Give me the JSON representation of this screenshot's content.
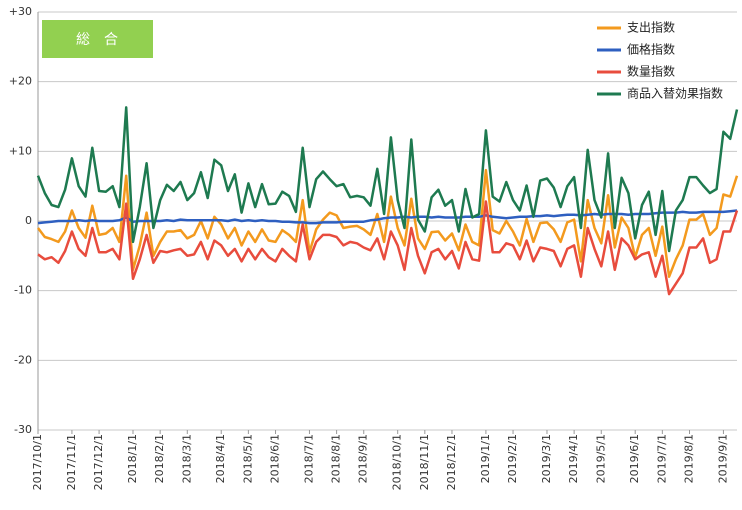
{
  "chart_data": {
    "type": "line",
    "annotation": "総　合",
    "categories": [
      "2017/10/1",
      null,
      null,
      null,
      null,
      "2017/11/1",
      null,
      null,
      null,
      "2017/12/1",
      null,
      null,
      null,
      null,
      "2018/1/1",
      null,
      null,
      null,
      "2018/2/1",
      null,
      null,
      null,
      "2018/3/1",
      null,
      null,
      null,
      null,
      "2018/4/1",
      null,
      null,
      null,
      "2018/5/1",
      null,
      null,
      null,
      "2018/6/1",
      null,
      null,
      null,
      null,
      "2018/7/1",
      null,
      null,
      null,
      "2018/8/1",
      null,
      null,
      null,
      "2018/9/1",
      null,
      null,
      null,
      null,
      "2018/10/1",
      null,
      null,
      null,
      "2018/11/1",
      null,
      null,
      null,
      "2018/12/1",
      null,
      null,
      null,
      null,
      "2019/1/1",
      null,
      null,
      null,
      "2019/2/1",
      null,
      null,
      null,
      null,
      "2019/3/1",
      null,
      null,
      null,
      "2019/4/1",
      null,
      null,
      null,
      "2019/5/1",
      null,
      null,
      null,
      null,
      "2019/6/1",
      null,
      null,
      null,
      "2019/7/1",
      null,
      null,
      null,
      "2019/8/1",
      null,
      null,
      null,
      null,
      "2019/9/1",
      null,
      null
    ],
    "series": [
      {
        "name": "支出指数",
        "color": "#f39a1e",
        "values": [
          -1,
          -2.3,
          -2.6,
          -3,
          -1.5,
          1.5,
          -1,
          -2.4,
          2.2,
          -2,
          -1.8,
          -1,
          -3,
          6.5,
          -7,
          -3.5,
          1.2,
          -5,
          -3,
          -1.5,
          -1.5,
          -1.3,
          -2.5,
          -2,
          0,
          -2.5,
          0.6,
          -0.5,
          -2.5,
          -1,
          -3.5,
          -1.5,
          -3,
          -1.2,
          -2.8,
          -3,
          -1.3,
          -2,
          -3,
          3,
          -4.5,
          -1.2,
          0.2,
          1.2,
          0.8,
          -1,
          -0.8,
          -0.7,
          -1.2,
          -2,
          1,
          -3,
          3.5,
          -1,
          -3.5,
          3.2,
          -2.5,
          -4,
          -1.6,
          -1.5,
          -2.8,
          -1.8,
          -4.2,
          -0.5,
          -3,
          -3.5,
          7.3,
          -1.3,
          -1.8,
          0,
          -1.5,
          -3.5,
          0.3,
          -3,
          -0.3,
          -0.2,
          -1.2,
          -3,
          -0.2,
          0.2,
          -5.8,
          3,
          -1,
          -3.2,
          3.7,
          -3.8,
          0.5,
          -1,
          -5.2,
          -2,
          -1,
          -5,
          -0.8,
          -8,
          -5.5,
          -3.5,
          0.2,
          0.2,
          1,
          -2,
          -1,
          3.8,
          3.5,
          6.5
        ]
      },
      {
        "name": "価格指数",
        "color": "#2e5fc0",
        "values": [
          -0.3,
          -0.2,
          -0.1,
          0,
          0,
          0,
          0.1,
          0,
          0.1,
          0,
          0,
          0,
          0.1,
          0.5,
          -0.1,
          0,
          0,
          0,
          0,
          0.1,
          0,
          0.2,
          0.1,
          0.1,
          0.1,
          0.1,
          0.1,
          0.1,
          0,
          0.2,
          0,
          0.1,
          0,
          0.1,
          0,
          0,
          -0.1,
          -0.1,
          -0.2,
          -0.2,
          -0.3,
          -0.3,
          -0.2,
          -0.2,
          -0.2,
          -0.1,
          -0.1,
          -0.1,
          -0.1,
          0.1,
          0.2,
          0.4,
          0.5,
          0.5,
          0.6,
          0.5,
          0.6,
          0.6,
          0.5,
          0.6,
          0.5,
          0.5,
          0.5,
          0.6,
          0.6,
          0.6,
          0.8,
          0.6,
          0.5,
          0.4,
          0.5,
          0.6,
          0.6,
          0.7,
          0.7,
          0.8,
          0.7,
          0.8,
          0.9,
          0.9,
          0.8,
          0.9,
          1,
          0.9,
          1,
          1,
          1,
          0.9,
          1,
          1,
          1,
          1.1,
          1.2,
          1.2,
          1.2,
          1.3,
          1.2,
          1.2,
          1.3,
          1.3,
          1.3,
          1.3,
          1.4,
          1.5
        ]
      },
      {
        "name": "数量指数",
        "color": "#e84c3d",
        "values": [
          -4.8,
          -5.5,
          -5.2,
          -6,
          -4.3,
          -1.5,
          -4,
          -5,
          -1,
          -4.5,
          -4.5,
          -4,
          -5.5,
          2.5,
          -8.3,
          -5.5,
          -2,
          -6,
          -4.3,
          -4.5,
          -4.2,
          -4,
          -5,
          -4.8,
          -3,
          -5.5,
          -2.8,
          -3.5,
          -5,
          -4,
          -5.8,
          -4,
          -5.5,
          -4,
          -5.2,
          -5.8,
          -4,
          -5,
          -5.8,
          -0.5,
          -5.5,
          -3,
          -2,
          -2,
          -2.3,
          -3.5,
          -3,
          -3.2,
          -3.8,
          -4.2,
          -2.5,
          -5.5,
          -1.5,
          -3.5,
          -7,
          -1,
          -5,
          -7.5,
          -4.5,
          -4,
          -5.5,
          -4.3,
          -6.8,
          -3,
          -5.5,
          -5.7,
          2.8,
          -4.5,
          -4.5,
          -3.2,
          -3.5,
          -5.5,
          -2.8,
          -5.8,
          -3.8,
          -4,
          -4.3,
          -6.5,
          -4,
          -3.5,
          -8,
          -1,
          -4,
          -6.5,
          -1.5,
          -7,
          -2.5,
          -3.5,
          -5.5,
          -4.8,
          -4.5,
          -8,
          -5,
          -10.5,
          -9,
          -7.5,
          -3.8,
          -3.8,
          -2.5,
          -6,
          -5.5,
          -1.5,
          -1.5,
          1.5
        ]
      },
      {
        "name": "商品入替効果指数",
        "color": "#1e7a50",
        "values": [
          6.5,
          4,
          2.3,
          2,
          4.5,
          9,
          5,
          3.5,
          10.5,
          4.3,
          4.2,
          5,
          2,
          16.3,
          -3,
          2,
          8.3,
          -1,
          3,
          5.2,
          4.3,
          5.6,
          3,
          4,
          7,
          3.3,
          8.8,
          8,
          4.3,
          6.7,
          1.2,
          5.4,
          2,
          5.3,
          2.4,
          2.5,
          4.2,
          3.6,
          1.3,
          10.5,
          2,
          6,
          7.1,
          6,
          5,
          5.3,
          3.4,
          3.6,
          3.4,
          2.2,
          7.5,
          1,
          12,
          3,
          -1,
          11.7,
          0.2,
          -1.5,
          3.4,
          4.5,
          2.2,
          3,
          -1.5,
          4.6,
          0.5,
          1,
          13,
          3.5,
          2.8,
          5.6,
          3,
          1.5,
          5.1,
          0.6,
          5.8,
          6.1,
          4.8,
          2,
          5,
          6.3,
          -1,
          10.2,
          3,
          0.5,
          9.7,
          -1,
          6.2,
          4,
          -2.5,
          2.3,
          4.2,
          -2,
          4.3,
          -4.3,
          1.5,
          3,
          6.3,
          6.3,
          5.1,
          4,
          4.6,
          12.8,
          11.8,
          16
        ]
      }
    ],
    "ylim": [
      -30,
      30
    ],
    "yticks": [
      {
        "value": 30,
        "label": "+30"
      },
      {
        "value": 20,
        "label": "+20"
      },
      {
        "value": 10,
        "label": "+10"
      },
      0,
      -10,
      -20,
      -30
    ],
    "grid": true,
    "legend": "top-right"
  }
}
